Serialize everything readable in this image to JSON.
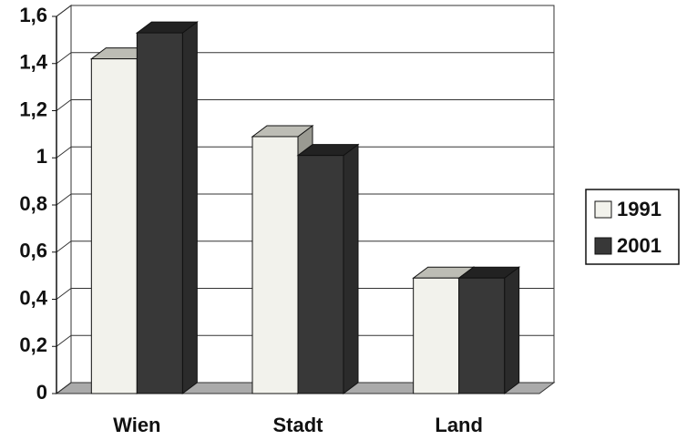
{
  "chart_data": {
    "type": "bar",
    "categories": [
      "Wien",
      "Stadt",
      "Land"
    ],
    "series": [
      {
        "name": "1991",
        "color": "#f2f2ec",
        "values": [
          1.42,
          1.09,
          0.49
        ]
      },
      {
        "name": "2001",
        "color": "#383838",
        "values": [
          1.53,
          1.01,
          0.49
        ]
      }
    ],
    "ylim": [
      0,
      1.6
    ],
    "yticks": [
      0,
      {
        "value": 0.2,
        "label": "0,2"
      },
      {
        "value": 0.4,
        "label": "0,4"
      },
      {
        "value": 0.6,
        "label": "0,6"
      },
      {
        "value": 0.8,
        "label": "0,8"
      },
      1,
      {
        "value": 1.2,
        "label": "1,2"
      },
      {
        "value": 1.4,
        "label": "1,4"
      },
      {
        "value": 1.6,
        "label": "1,6"
      }
    ],
    "grid": true,
    "legend": "right"
  }
}
